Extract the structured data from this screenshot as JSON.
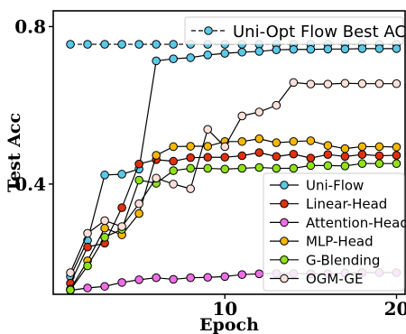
{
  "chart_data": {
    "type": "line",
    "xlabel": "Epoch",
    "ylabel": "Test Acc",
    "xlim": [
      0,
      20.5
    ],
    "ylim": [
      0.12,
      0.84
    ],
    "xticks": [
      10,
      20
    ],
    "yticks": [
      0.4,
      0.8
    ],
    "x": [
      1,
      2,
      3,
      4,
      5,
      6,
      7,
      8,
      9,
      10,
      11,
      12,
      13,
      14,
      15,
      16,
      17,
      18,
      19,
      20
    ],
    "legend_position": "lower-right",
    "series": [
      {
        "name": "Uni-Flow",
        "color": "#5bc8e8",
        "values": [
          0.165,
          0.257,
          0.423,
          0.425,
          0.438,
          0.713,
          0.718,
          0.721,
          0.728,
          0.732,
          0.735,
          0.737,
          0.741,
          0.742,
          0.742,
          0.743,
          0.743,
          0.744,
          0.744,
          0.744
        ]
      },
      {
        "name": "Linear-Head",
        "color": "#e0310f",
        "values": [
          0.148,
          0.24,
          0.25,
          0.34,
          0.451,
          0.462,
          0.458,
          0.467,
          0.468,
          0.468,
          0.472,
          0.48,
          0.47,
          0.476,
          0.466,
          0.475,
          0.47,
          0.475,
          0.472,
          0.473
        ]
      },
      {
        "name": "Attention-Head",
        "color": "#ee6ee6",
        "values": [
          0.13,
          0.136,
          0.14,
          0.15,
          0.157,
          0.162,
          0.158,
          0.162,
          0.163,
          0.165,
          0.17,
          0.172,
          0.173,
          0.173,
          0.172,
          0.172,
          0.174,
          0.175,
          0.175,
          0.175
        ]
      },
      {
        "name": "MLP-Head",
        "color": "#f5b800",
        "values": [
          0.133,
          0.205,
          0.288,
          0.271,
          0.325,
          0.473,
          0.495,
          0.496,
          0.496,
          0.508,
          0.508,
          0.515,
          0.505,
          0.508,
          0.51,
          0.498,
          0.49,
          0.495,
          0.495,
          0.494
        ]
      },
      {
        "name": "G-Blending",
        "color": "#8fe21a",
        "values": [
          0.131,
          0.192,
          0.265,
          0.285,
          0.41,
          0.402,
          0.434,
          0.44,
          0.44,
          0.438,
          0.44,
          0.442,
          0.44,
          0.44,
          0.447,
          0.447,
          0.446,
          0.452,
          0.452,
          0.452
        ]
      },
      {
        "name": "OGM-GE",
        "color": "#fde0d9",
        "values": [
          0.175,
          0.275,
          0.307,
          0.292,
          0.35,
          0.415,
          0.4,
          0.388,
          0.539,
          0.495,
          0.573,
          0.583,
          0.6,
          0.658,
          0.654,
          0.654,
          0.656,
          0.655,
          0.655,
          0.655
        ]
      }
    ],
    "best_line": {
      "name": "Uni-Opt Flow Best ACC",
      "value": 0.755,
      "color": "#5bc8e8"
    }
  }
}
